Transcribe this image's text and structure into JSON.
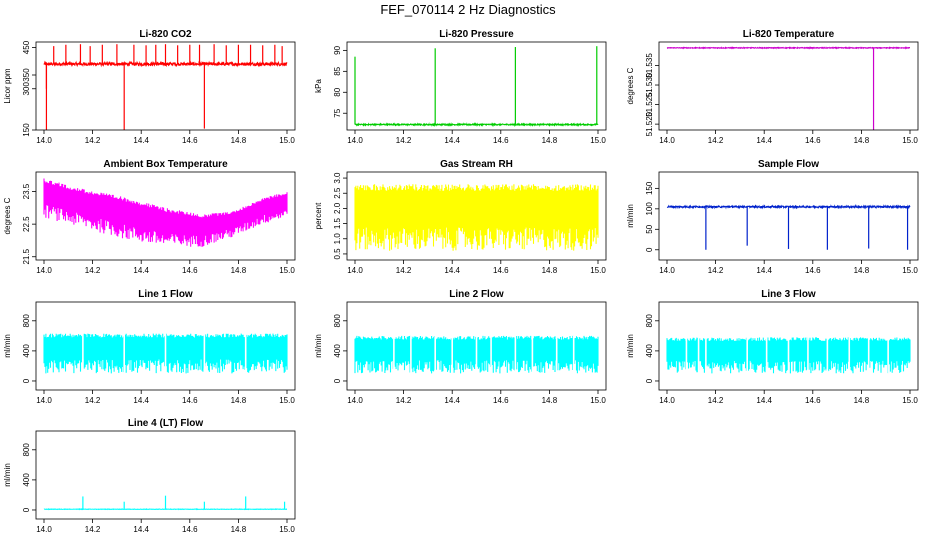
{
  "figure": {
    "title": "FEF_070114  2 Hz Diagnostics"
  },
  "chart_data": [
    {
      "type": "line",
      "title": "Li-820 CO2",
      "xlabel": "",
      "ylabel": "Licor ppm",
      "color": "#ff0000",
      "xlim": [
        14.0,
        15.0
      ],
      "ylim": [
        150,
        470
      ],
      "xticks": [
        14.0,
        14.2,
        14.4,
        14.6,
        14.8,
        15.0
      ],
      "xtick_labels": [
        "14.0",
        "14.2",
        "14.4",
        "14.6",
        "14.8",
        "15.0"
      ],
      "yticks": [
        150,
        300,
        350,
        450
      ],
      "ytick_labels": [
        "150",
        "300",
        "350",
        "450"
      ],
      "series": [
        {
          "pattern": "noisy-level",
          "base": 390,
          "noise": 6,
          "spikes": [
            [
              14.01,
              150
            ],
            [
              14.01,
              300
            ],
            [
              14.04,
              455
            ],
            [
              14.09,
              460
            ],
            [
              14.15,
              462
            ],
            [
              14.19,
              455
            ],
            [
              14.24,
              460
            ],
            [
              14.3,
              462
            ],
            [
              14.33,
              150
            ],
            [
              14.37,
              460
            ],
            [
              14.42,
              458
            ],
            [
              14.46,
              460
            ],
            [
              14.5,
              462
            ],
            [
              14.55,
              458
            ],
            [
              14.6,
              460
            ],
            [
              14.64,
              460
            ],
            [
              14.66,
              155
            ],
            [
              14.7,
              462
            ],
            [
              14.75,
              458
            ],
            [
              14.8,
              460
            ],
            [
              14.85,
              460
            ],
            [
              14.9,
              458
            ],
            [
              14.95,
              460
            ],
            [
              14.98,
              455
            ]
          ]
        }
      ]
    },
    {
      "type": "line",
      "title": "Li-820 Pressure",
      "xlabel": "",
      "ylabel": "kPa",
      "color": "#00cc00",
      "xlim": [
        14.0,
        15.0
      ],
      "ylim": [
        71,
        92
      ],
      "xticks": [
        14.0,
        14.2,
        14.4,
        14.6,
        14.8,
        15.0
      ],
      "xtick_labels": [
        "14.0",
        "14.2",
        "14.4",
        "14.6",
        "14.8",
        "15.0"
      ],
      "yticks": [
        75,
        80,
        85,
        90
      ],
      "ytick_labels": [
        "75",
        "80",
        "85",
        "90"
      ],
      "series": [
        {
          "pattern": "noisy-level",
          "base": 72.3,
          "noise": 0.15,
          "spikes": [
            [
              14.0,
              88.5
            ],
            [
              14.33,
              90.5
            ],
            [
              14.66,
              90.8
            ],
            [
              14.995,
              91
            ]
          ]
        }
      ]
    },
    {
      "type": "line",
      "title": "Li-820 Temperature",
      "xlabel": "",
      "ylabel": "degrees C",
      "color": "#cc00cc",
      "xlim": [
        14.0,
        15.0
      ],
      "ylim": [
        51.5185,
        51.541
      ],
      "xticks": [
        14.0,
        14.2,
        14.4,
        14.6,
        14.8,
        15.0
      ],
      "xtick_labels": [
        "14.0",
        "14.2",
        "14.4",
        "14.6",
        "14.8",
        "15.0"
      ],
      "yticks": [
        51.52,
        51.525,
        51.53,
        51.535
      ],
      "ytick_labels": [
        "51.520",
        "51.525",
        "51.530",
        "51.535"
      ],
      "series": [
        {
          "pattern": "noisy-level",
          "base": 51.5395,
          "noise": 0.0001,
          "spikes": [
            [
              14.85,
              51.5185
            ]
          ]
        }
      ]
    },
    {
      "type": "line",
      "title": "Ambient Box Temperature",
      "xlabel": "",
      "ylabel": "degrees C",
      "color": "#ff00ff",
      "xlim": [
        14.0,
        15.0
      ],
      "ylim": [
        21.4,
        24.1
      ],
      "xticks": [
        14.0,
        14.2,
        14.4,
        14.6,
        14.8,
        15.0
      ],
      "xtick_labels": [
        "14.0",
        "14.2",
        "14.4",
        "14.6",
        "14.8",
        "15.0"
      ],
      "yticks": [
        21.5,
        22.5,
        23.5
      ],
      "ytick_labels": [
        "21.5",
        "22.5",
        "23.5"
      ],
      "series": [
        {
          "pattern": "band",
          "top": [
            [
              14.0,
              23.9
            ],
            [
              14.15,
              23.6
            ],
            [
              14.35,
              23.3
            ],
            [
              14.5,
              23.0
            ],
            [
              14.65,
              22.8
            ],
            [
              14.78,
              22.9
            ],
            [
              14.9,
              23.3
            ],
            [
              15.0,
              23.5
            ]
          ],
          "bottom": [
            [
              14.0,
              22.7
            ],
            [
              14.15,
              22.4
            ],
            [
              14.35,
              22.0
            ],
            [
              14.5,
              21.8
            ],
            [
              14.65,
              21.8
            ],
            [
              14.78,
              22.1
            ],
            [
              14.9,
              22.5
            ],
            [
              15.0,
              22.7
            ]
          ]
        }
      ]
    },
    {
      "type": "line",
      "title": "Gas Stream RH",
      "xlabel": "",
      "ylabel": "percent",
      "color": "#ffff00",
      "xlim": [
        14.0,
        15.0
      ],
      "ylim": [
        0.3,
        3.2
      ],
      "xticks": [
        14.0,
        14.2,
        14.4,
        14.6,
        14.8,
        15.0
      ],
      "xtick_labels": [
        "14.0",
        "14.2",
        "14.4",
        "14.6",
        "14.8",
        "15.0"
      ],
      "yticks": [
        0.5,
        1.0,
        1.5,
        2.0,
        2.5,
        3.0
      ],
      "ytick_labels": [
        "0.5",
        "1.0",
        "1.5",
        "2.0",
        "2.5",
        "3.0"
      ],
      "series": [
        {
          "pattern": "band",
          "top": [
            [
              14.0,
              2.8
            ],
            [
              15.0,
              2.8
            ]
          ],
          "bottom": [
            [
              14.0,
              0.6
            ],
            [
              15.0,
              0.6
            ]
          ]
        }
      ]
    },
    {
      "type": "line",
      "title": "Sample Flow",
      "xlabel": "",
      "ylabel": "ml/min",
      "color": "#0022cc",
      "xlim": [
        14.0,
        15.0
      ],
      "ylim": [
        -25,
        190
      ],
      "xticks": [
        14.0,
        14.2,
        14.4,
        14.6,
        14.8,
        15.0
      ],
      "xtick_labels": [
        "14.0",
        "14.2",
        "14.4",
        "14.6",
        "14.8",
        "15.0"
      ],
      "yticks": [
        0,
        50,
        100,
        150
      ],
      "ytick_labels": [
        "0",
        "50",
        "100",
        "150"
      ],
      "series": [
        {
          "pattern": "noisy-level",
          "base": 105,
          "noise": 2,
          "spikes": [
            [
              14.16,
              0
            ],
            [
              14.33,
              10
            ],
            [
              14.5,
              2
            ],
            [
              14.66,
              0
            ],
            [
              14.83,
              3
            ],
            [
              14.99,
              0
            ]
          ]
        }
      ]
    },
    {
      "type": "line",
      "title": "Line 1 Flow",
      "xlabel": "",
      "ylabel": "ml/min",
      "color": "#00ffff",
      "xlim": [
        14.0,
        15.0
      ],
      "ylim": [
        -120,
        1050
      ],
      "xticks": [
        14.0,
        14.2,
        14.4,
        14.6,
        14.8,
        15.0
      ],
      "xtick_labels": [
        "14.0",
        "14.2",
        "14.4",
        "14.6",
        "14.8",
        "15.0"
      ],
      "yticks": [
        0,
        400,
        800
      ],
      "ytick_labels": [
        "0",
        "400",
        "800"
      ],
      "series": [
        {
          "pattern": "band",
          "top": [
            [
              14.0,
              630
            ],
            [
              15.0,
              630
            ]
          ],
          "bottom": [
            [
              14.0,
              100
            ],
            [
              15.0,
              100
            ]
          ],
          "gaps": [
            14.16,
            14.33,
            14.5,
            14.66,
            14.83
          ]
        }
      ]
    },
    {
      "type": "line",
      "title": "Line 2 Flow",
      "xlabel": "",
      "ylabel": "ml/min",
      "color": "#00ffff",
      "xlim": [
        14.0,
        15.0
      ],
      "ylim": [
        -120,
        1050
      ],
      "xticks": [
        14.0,
        14.2,
        14.4,
        14.6,
        14.8,
        15.0
      ],
      "xtick_labels": [
        "14.0",
        "14.2",
        "14.4",
        "14.6",
        "14.8",
        "15.0"
      ],
      "yticks": [
        0,
        400,
        800
      ],
      "ytick_labels": [
        "0",
        "400",
        "800"
      ],
      "series": [
        {
          "pattern": "band",
          "top": [
            [
              14.0,
              600
            ],
            [
              15.0,
              600
            ]
          ],
          "bottom": [
            [
              14.0,
              100
            ],
            [
              15.0,
              100
            ]
          ],
          "gaps": [
            14.16,
            14.23,
            14.33,
            14.4,
            14.5,
            14.56,
            14.66,
            14.73,
            14.83,
            14.9
          ]
        }
      ]
    },
    {
      "type": "line",
      "title": "Line 3 Flow",
      "xlabel": "",
      "ylabel": "ml/min",
      "color": "#00ffff",
      "xlim": [
        14.0,
        15.0
      ],
      "ylim": [
        -120,
        1050
      ],
      "xticks": [
        14.0,
        14.2,
        14.4,
        14.6,
        14.8,
        15.0
      ],
      "xtick_labels": [
        "14.0",
        "14.2",
        "14.4",
        "14.6",
        "14.8",
        "15.0"
      ],
      "yticks": [
        0,
        400,
        800
      ],
      "ytick_labels": [
        "0",
        "400",
        "800"
      ],
      "series": [
        {
          "pattern": "band",
          "top": [
            [
              14.0,
              580
            ],
            [
              15.0,
              580
            ]
          ],
          "bottom": [
            [
              14.0,
              100
            ],
            [
              15.0,
              100
            ]
          ],
          "gaps": [
            14.08,
            14.13,
            14.16,
            14.33,
            14.41,
            14.5,
            14.58,
            14.66,
            14.75,
            14.83,
            14.91
          ]
        }
      ]
    },
    {
      "type": "line",
      "title": "Line 4 (LT) Flow",
      "xlabel": "",
      "ylabel": "ml/min",
      "color": "#00ffff",
      "xlim": [
        14.0,
        15.0
      ],
      "ylim": [
        -120,
        1050
      ],
      "xticks": [
        14.0,
        14.2,
        14.4,
        14.6,
        14.8,
        15.0
      ],
      "xtick_labels": [
        "14.0",
        "14.2",
        "14.4",
        "14.6",
        "14.8",
        "15.0"
      ],
      "yticks": [
        0,
        400,
        800
      ],
      "ytick_labels": [
        "0",
        "400",
        "800"
      ],
      "series": [
        {
          "pattern": "noisy-level",
          "base": 10,
          "noise": 3,
          "spikes": [
            [
              14.16,
              180
            ],
            [
              14.33,
              110
            ],
            [
              14.5,
              190
            ],
            [
              14.66,
              110
            ],
            [
              14.83,
              180
            ],
            [
              14.99,
              110
            ]
          ]
        }
      ]
    }
  ]
}
